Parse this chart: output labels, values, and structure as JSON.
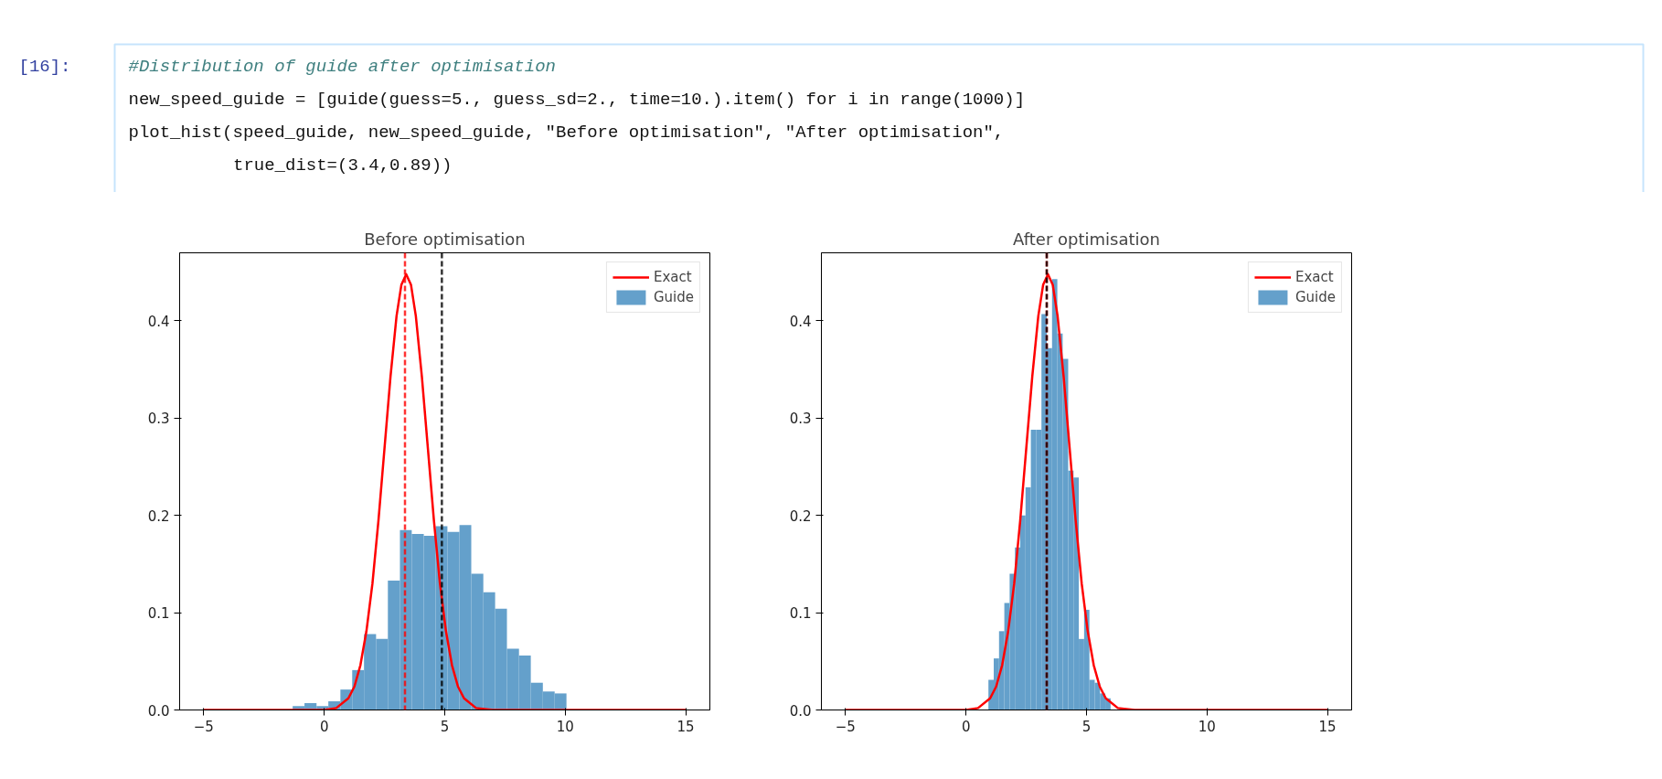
{
  "chart_data": [
    {
      "type": "histogram",
      "title": "Before optimisation",
      "annotations": [
        "[16]:",
        "#Distribution of guide after optimisation",
        "new_speed_guide = [guide(guess=5., guess_sd=2., time=10.).item() for i in range(1000)]",
        "plot_hist(speed_guide, new_speed_guide, \"Before optimisation\", \"After optimisation\",",
        "          true_dist=(3.4,0.89))"
      ],
      "bins": [
        -1.31,
        -0.82,
        -0.32,
        0.17,
        0.67,
        1.16,
        1.65,
        2.15,
        2.64,
        3.14,
        3.63,
        4.13,
        4.62,
        5.11,
        5.61,
        6.1,
        6.6,
        7.09,
        7.58,
        8.08,
        8.57,
        9.07,
        9.56,
        10.05
      ],
      "series": [
        {
          "name": "Guide",
          "color": "#64a0cb",
          "values": [
            0.004,
            0.007,
            0.004,
            0.009,
            0.021,
            0.041,
            0.078,
            0.073,
            0.133,
            0.185,
            0.181,
            0.179,
            0.189,
            0.183,
            0.19,
            0.14,
            0.121,
            0.104,
            0.063,
            0.056,
            0.028,
            0.019,
            0.017
          ]
        },
        {
          "name": "Exact",
          "type": "line",
          "color": "#ff0000",
          "x": [
            -5,
            0,
            0.5,
            1.0,
            1.25,
            1.5,
            1.75,
            2.0,
            2.25,
            2.5,
            2.75,
            3.0,
            3.2,
            3.4,
            3.6,
            3.8,
            4.05,
            4.3,
            4.55,
            4.8,
            5.05,
            5.3,
            5.55,
            5.8,
            6.3,
            7,
            15
          ],
          "values": [
            0,
            0,
            0.002,
            0.012,
            0.024,
            0.046,
            0.081,
            0.13,
            0.195,
            0.269,
            0.343,
            0.405,
            0.437,
            0.448,
            0.437,
            0.405,
            0.343,
            0.269,
            0.195,
            0.13,
            0.081,
            0.046,
            0.024,
            0.012,
            0.002,
            0,
            0
          ]
        }
      ],
      "ref_lines": [
        {
          "axis": "x",
          "value": 3.35,
          "color": "#ff0000",
          "line_style": "dashed"
        },
        {
          "axis": "x",
          "value": 4.88,
          "color": "#000000",
          "line_style": "dashed"
        }
      ],
      "xlim": [
        -6,
        16
      ],
      "xticks": [
        -5,
        0,
        5,
        10,
        15
      ],
      "ylim": [
        0,
        0.47
      ],
      "yticks": [
        {
          "value": 0,
          "label": "0.0"
        },
        0.1,
        0.2,
        0.3,
        0.4
      ],
      "legend": "top right",
      "grid": false
    },
    {
      "type": "histogram",
      "title": "After optimisation",
      "bins": [
        0.93,
        1.15,
        1.37,
        1.59,
        1.81,
        2.03,
        2.25,
        2.47,
        2.69,
        2.91,
        3.13,
        3.35,
        3.57,
        3.79,
        4.01,
        4.24,
        4.46,
        4.68,
        4.9,
        5.12,
        5.34,
        5.56,
        5.78,
        6.0
      ],
      "series": [
        {
          "name": "Guide",
          "color": "#64a0cb",
          "values": [
            0.031,
            0.053,
            0.081,
            0.11,
            0.14,
            0.167,
            0.2,
            0.229,
            0.288,
            0.288,
            0.407,
            0.372,
            0.443,
            0.387,
            0.361,
            0.246,
            0.239,
            0.073,
            0.103,
            0.031,
            0.028,
            0.017,
            0.012
          ]
        },
        {
          "name": "Exact",
          "type": "line",
          "color": "#ff0000",
          "x": [
            -5,
            0,
            0.5,
            1.0,
            1.25,
            1.5,
            1.75,
            2.0,
            2.25,
            2.5,
            2.75,
            3.0,
            3.2,
            3.4,
            3.6,
            3.8,
            4.05,
            4.3,
            4.55,
            4.8,
            5.05,
            5.3,
            5.55,
            5.8,
            6.3,
            7,
            15
          ],
          "values": [
            0,
            0,
            0.002,
            0.012,
            0.024,
            0.046,
            0.081,
            0.13,
            0.195,
            0.269,
            0.343,
            0.405,
            0.437,
            0.448,
            0.437,
            0.405,
            0.343,
            0.269,
            0.195,
            0.13,
            0.081,
            0.046,
            0.024,
            0.012,
            0.002,
            0,
            0
          ]
        }
      ],
      "ref_lines": [
        {
          "axis": "x",
          "value": 3.35,
          "color": "#ff0000",
          "line_style": "dashed"
        },
        {
          "axis": "x",
          "value": 3.35,
          "color": "#000000",
          "line_style": "dashed"
        }
      ],
      "xlim": [
        -6,
        16
      ],
      "xticks": [
        -5,
        0,
        5,
        10,
        15
      ],
      "ylim": [
        0,
        0.47
      ],
      "yticks": [
        {
          "value": 0,
          "label": "0.0"
        },
        0.1,
        0.2,
        0.3,
        0.4
      ],
      "legend": "top right",
      "grid": false
    }
  ]
}
